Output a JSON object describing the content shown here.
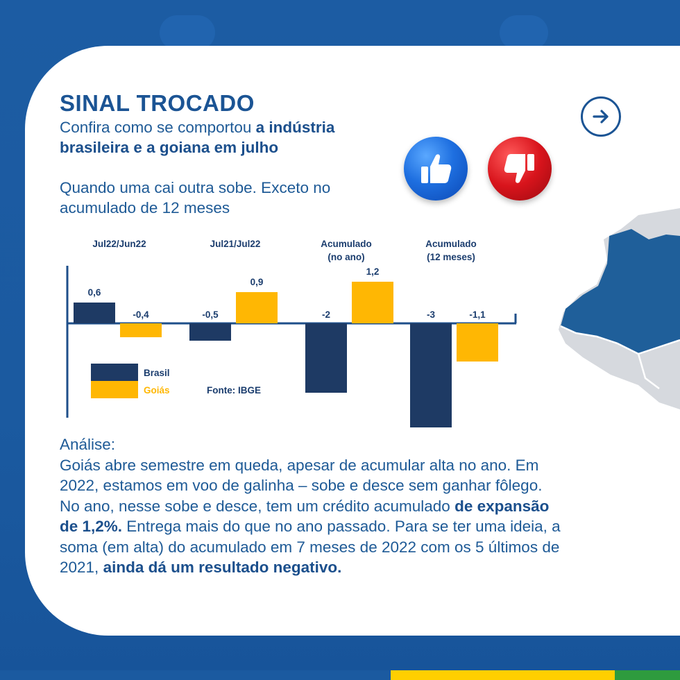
{
  "header": {
    "title": "SINAL TROCADO",
    "subtitle_plain": "Confira como se comportou ",
    "subtitle_bold": "a indústria brasileira e a goiana em julho",
    "lead": "Quando uma cai outra sobe. Exceto no acumulado de 12 meses"
  },
  "icons": {
    "next": "arrow-right-icon",
    "like": "thumbs-up-icon",
    "dislike": "thumbs-down-icon",
    "map": "brazil-map-icon"
  },
  "analysis": {
    "heading": "Análise:",
    "p1": "Goiás abre semestre em queda, apesar de acumular alta no ano. Em 2022, estamos em voo de galinha – sobe e desce sem ganhar fôlego. No ano, nesse sobe e desce, tem um crédito acumulado ",
    "b1": "de expansão de 1,2%.",
    "p2": " Entrega mais do que no ano passado. Para se ter uma ideia, a soma (em alta) do acumulado em 7 meses de 2022 com os 5 últimos de 2021, ",
    "b2": "ainda dá um resultado negativo."
  },
  "colors": {
    "brasil": "#1e3a64",
    "goias": "#ffb703",
    "axis": "#1e4f8a",
    "label": "#1b3d6e",
    "bottom_blue": "#1b5aa0",
    "bottom_yellow": "#ffcf00",
    "bottom_green": "#2e9b3e"
  },
  "chart_data": {
    "type": "bar",
    "categories": [
      "Jul22/Jun22",
      "Jul21/Jul22",
      "Acumulado\n(no ano)",
      "Acumulado\n(12 meses)"
    ],
    "series": [
      {
        "name": "Brasil",
        "values": [
          0.6,
          -0.5,
          -2,
          -3
        ],
        "labels": [
          "0,6",
          "-0,5",
          "-2",
          "-3"
        ]
      },
      {
        "name": "Goiás",
        "values": [
          -0.4,
          0.9,
          1.2,
          -1.1
        ],
        "labels": [
          "-0,4",
          "0,9",
          "1,2",
          "-1,1"
        ]
      }
    ],
    "source": "Fonte: IBGE",
    "legend_position": "bottom-left"
  }
}
